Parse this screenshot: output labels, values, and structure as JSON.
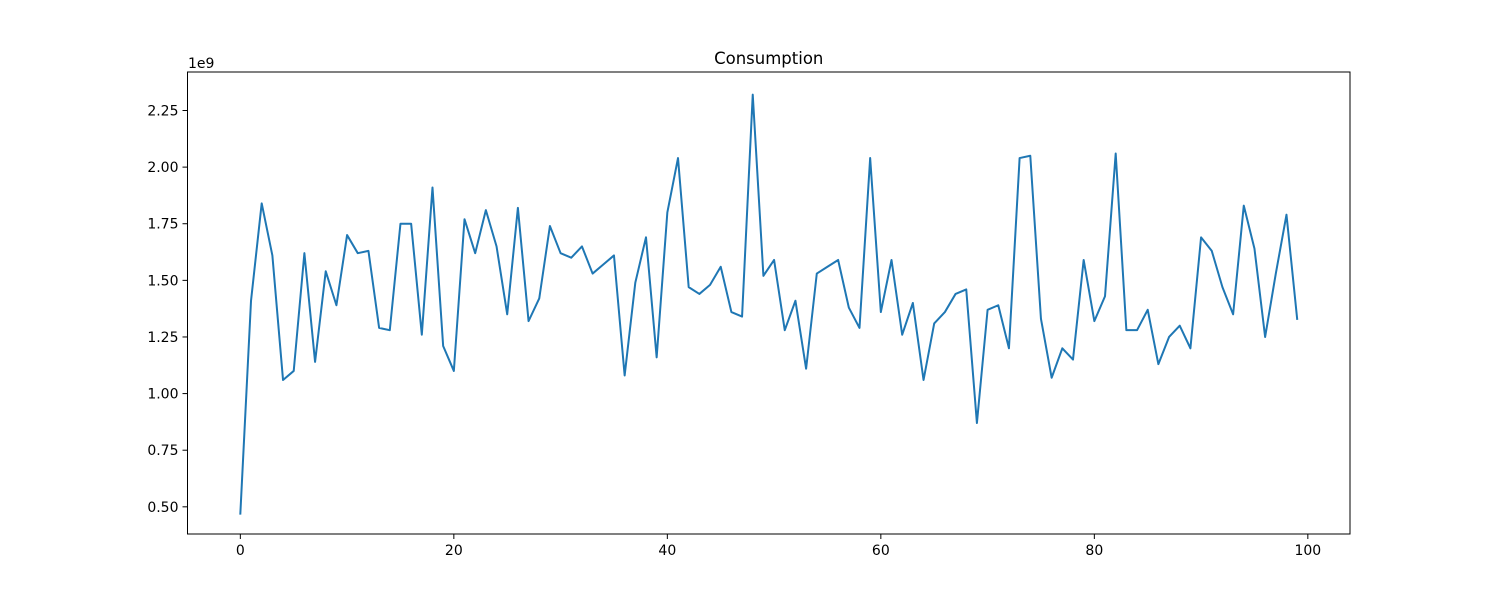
{
  "chart_data": {
    "type": "line",
    "title": "Consumption",
    "xlabel": "",
    "ylabel": "",
    "y_offset_label": "1e9",
    "xlim": [
      -4.95,
      103.95
    ],
    "ylim": [
      0.38,
      2.42
    ],
    "x_ticks": [
      0,
      20,
      40,
      60,
      80,
      100
    ],
    "x_tick_labels": [
      "0",
      "20",
      "40",
      "60",
      "80",
      "100"
    ],
    "y_ticks": [
      0.5,
      0.75,
      1.0,
      1.25,
      1.5,
      1.75,
      2.0,
      2.25
    ],
    "y_tick_labels": [
      "0.50",
      "0.75",
      "1.00",
      "1.25",
      "1.50",
      "1.75",
      "2.00",
      "2.25"
    ],
    "grid": false,
    "color": "#1f77b4",
    "series": [
      {
        "name": "Consumption",
        "x": [
          0,
          1,
          2,
          3,
          4,
          5,
          6,
          7,
          8,
          9,
          10,
          11,
          12,
          13,
          14,
          15,
          16,
          17,
          18,
          19,
          20,
          21,
          22,
          23,
          24,
          25,
          26,
          27,
          28,
          29,
          30,
          31,
          32,
          33,
          34,
          35,
          36,
          37,
          38,
          39,
          40,
          41,
          42,
          43,
          44,
          45,
          46,
          47,
          48,
          49,
          50,
          51,
          52,
          53,
          54,
          55,
          56,
          57,
          58,
          59,
          60,
          61,
          62,
          63,
          64,
          65,
          66,
          67,
          68,
          69,
          70,
          71,
          72,
          73,
          74,
          75,
          76,
          77,
          78,
          79,
          80,
          81,
          82,
          83,
          84,
          85,
          86,
          87,
          88,
          89,
          90,
          91,
          92,
          93,
          94,
          95,
          96,
          97,
          98,
          99
        ],
        "values": [
          0.47,
          1.41,
          1.84,
          1.61,
          1.06,
          1.1,
          1.62,
          1.14,
          1.54,
          1.39,
          1.7,
          1.62,
          1.63,
          1.29,
          1.28,
          1.75,
          1.75,
          1.26,
          1.91,
          1.21,
          1.1,
          1.77,
          1.62,
          1.81,
          1.65,
          1.35,
          1.82,
          1.32,
          1.42,
          1.74,
          1.62,
          1.6,
          1.65,
          1.53,
          1.57,
          1.61,
          1.08,
          1.49,
          1.69,
          1.16,
          1.8,
          2.04,
          1.47,
          1.44,
          1.48,
          1.56,
          1.36,
          1.34,
          2.32,
          1.52,
          1.59,
          1.28,
          1.41,
          1.11,
          1.53,
          1.56,
          1.59,
          1.38,
          1.29,
          2.04,
          1.36,
          1.59,
          1.26,
          1.4,
          1.06,
          1.31,
          1.36,
          1.44,
          1.46,
          0.87,
          1.37,
          1.39,
          1.2,
          2.04,
          2.05,
          1.33,
          1.07,
          1.2,
          1.15,
          1.59,
          1.32,
          1.43,
          2.06,
          1.28,
          1.28,
          1.37,
          1.13,
          1.25,
          1.3,
          1.2,
          1.69,
          1.63,
          1.47,
          1.35,
          1.83,
          1.64,
          1.25,
          1.53,
          1.79,
          1.33
        ]
      }
    ]
  }
}
